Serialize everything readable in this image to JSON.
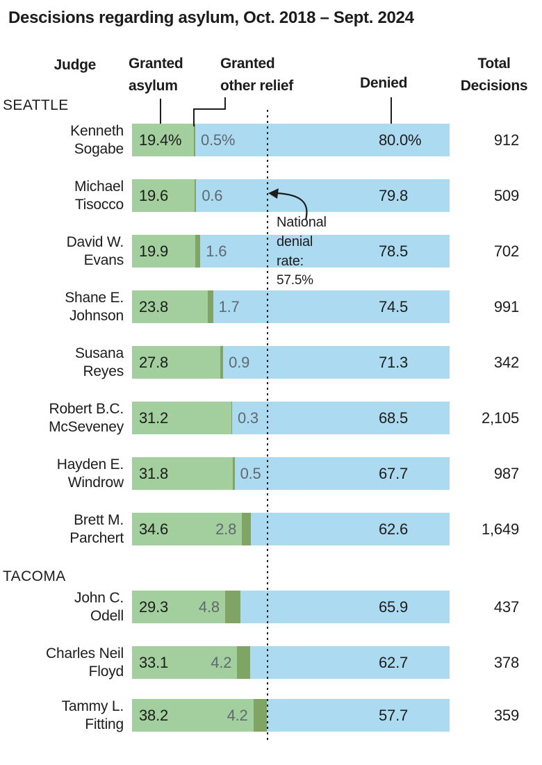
{
  "title": "Descisions regarding asylum, Oct. 2018 – Sept. 2024",
  "columns": {
    "judge": "Judge",
    "granted_asylum": "Granted\nasylum",
    "granted_other": "Granted\nother relief",
    "denied": "Denied",
    "total": "Total\nDecisions"
  },
  "sections": [
    {
      "label": "SEATTLE"
    },
    {
      "label": "TACOMA"
    }
  ],
  "annotation": {
    "text": "National\ndenial\nrate:",
    "value": "57.5%"
  },
  "colors": {
    "granted_asylum": "#a3cf9e",
    "granted_other": "#7fa463",
    "denied": "#acdbf1",
    "text": "#1c1c1c",
    "muted_label": "#5f696e"
  },
  "chart_data": {
    "type": "bar",
    "orientation": "horizontal",
    "stacked": true,
    "unit": "percent",
    "xlim": [
      0,
      100
    ],
    "series_names": [
      "Granted asylum",
      "Granted other relief",
      "Denied"
    ],
    "national_denial_rate": 57.5,
    "rows": [
      {
        "section": "SEATTLE",
        "judge": "Kenneth Sogabe",
        "name_lines": "Kenneth\nSogabe",
        "granted_asylum": 19.4,
        "granted_other": 0.5,
        "denied": 80.0,
        "total_decisions": "912",
        "labels": {
          "granted": "19.4%",
          "other": "0.5%",
          "denied": "80.0%"
        },
        "other_label_side": "right"
      },
      {
        "section": "SEATTLE",
        "judge": "Michael Tisocco",
        "name_lines": "Michael\nTisocco",
        "granted_asylum": 19.6,
        "granted_other": 0.6,
        "denied": 79.8,
        "total_decisions": "509",
        "labels": {
          "granted": "19.6",
          "other": "0.6",
          "denied": "79.8"
        },
        "other_label_side": "right"
      },
      {
        "section": "SEATTLE",
        "judge": "David W. Evans",
        "name_lines": "David W.\nEvans",
        "granted_asylum": 19.9,
        "granted_other": 1.6,
        "denied": 78.5,
        "total_decisions": "702",
        "labels": {
          "granted": "19.9",
          "other": "1.6",
          "denied": "78.5"
        },
        "other_label_side": "right"
      },
      {
        "section": "SEATTLE",
        "judge": "Shane E. Johnson",
        "name_lines": "Shane E.\nJohnson",
        "granted_asylum": 23.8,
        "granted_other": 1.7,
        "denied": 74.5,
        "total_decisions": "991",
        "labels": {
          "granted": "23.8",
          "other": "1.7",
          "denied": "74.5"
        },
        "other_label_side": "right"
      },
      {
        "section": "SEATTLE",
        "judge": "Susana Reyes",
        "name_lines": "Susana\nReyes",
        "granted_asylum": 27.8,
        "granted_other": 0.9,
        "denied": 71.3,
        "total_decisions": "342",
        "labels": {
          "granted": "27.8",
          "other": "0.9",
          "denied": "71.3"
        },
        "other_label_side": "right"
      },
      {
        "section": "SEATTLE",
        "judge": "Robert B.C. McSeveney",
        "name_lines": "Robert B.C.\nMcSeveney",
        "granted_asylum": 31.2,
        "granted_other": 0.3,
        "denied": 68.5,
        "total_decisions": "2,105",
        "labels": {
          "granted": "31.2",
          "other": "0.3",
          "denied": "68.5"
        },
        "other_label_side": "right"
      },
      {
        "section": "SEATTLE",
        "judge": "Hayden E. Windrow",
        "name_lines": "Hayden E.\nWindrow",
        "granted_asylum": 31.8,
        "granted_other": 0.5,
        "denied": 67.7,
        "total_decisions": "987",
        "labels": {
          "granted": "31.8",
          "other": "0.5",
          "denied": "67.7"
        },
        "other_label_side": "right"
      },
      {
        "section": "SEATTLE",
        "judge": "Brett M. Parchert",
        "name_lines": "Brett M.\nParchert",
        "granted_asylum": 34.6,
        "granted_other": 2.8,
        "denied": 62.6,
        "total_decisions": "1,649",
        "labels": {
          "granted": "34.6",
          "other": "2.8",
          "denied": "62.6"
        },
        "other_label_side": "left"
      },
      {
        "section": "TACOMA",
        "judge": "John C. Odell",
        "name_lines": "John C.\nOdell",
        "granted_asylum": 29.3,
        "granted_other": 4.8,
        "denied": 65.9,
        "total_decisions": "437",
        "labels": {
          "granted": "29.3",
          "other": "4.8",
          "denied": "65.9"
        },
        "other_label_side": "left"
      },
      {
        "section": "TACOMA",
        "judge": "Charles Neil Floyd",
        "name_lines": "Charles Neil\nFloyd",
        "granted_asylum": 33.1,
        "granted_other": 4.2,
        "denied": 62.7,
        "total_decisions": "378",
        "labels": {
          "granted": "33.1",
          "other": "4.2",
          "denied": "62.7"
        },
        "other_label_side": "left"
      },
      {
        "section": "TACOMA",
        "judge": "Tammy L. Fitting",
        "name_lines": "Tammy L.\nFitting",
        "granted_asylum": 38.2,
        "granted_other": 4.2,
        "denied": 57.7,
        "total_decisions": "359",
        "labels": {
          "granted": "38.2",
          "other": "4.2",
          "denied": "57.7"
        },
        "other_label_side": "left"
      }
    ]
  }
}
